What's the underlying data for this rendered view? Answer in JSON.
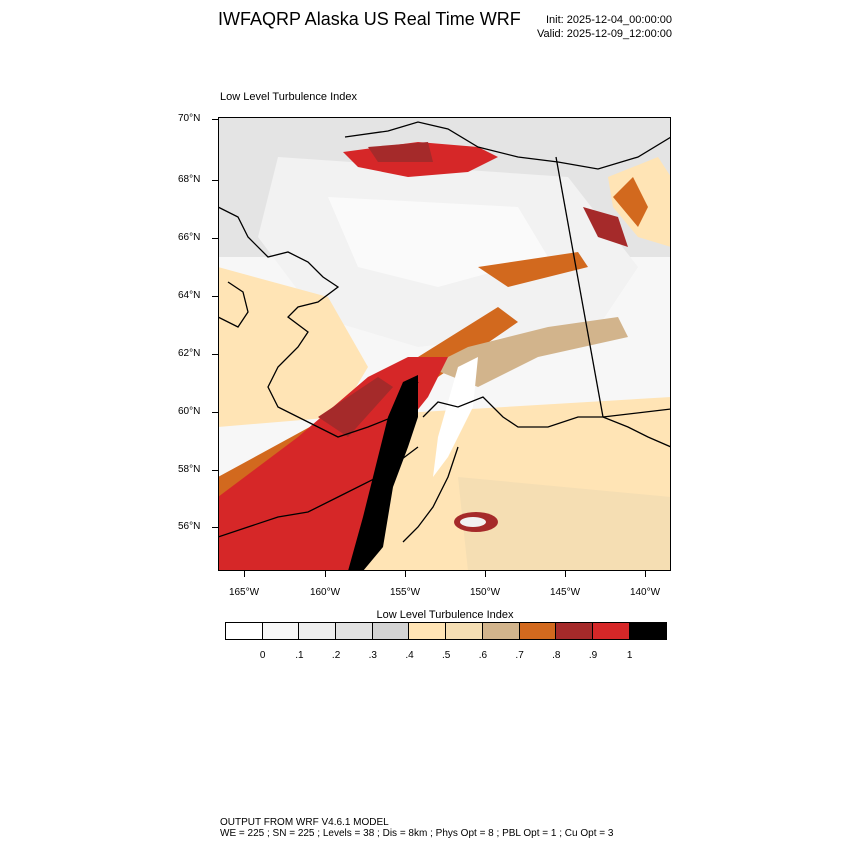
{
  "header": {
    "title": "IWFAQRP Alaska US Real Time WRF",
    "init": "Init: 2025-12-04_00:00:00",
    "valid": "Valid: 2025-12-09_12:00:00"
  },
  "map": {
    "field_title": "Low Level Turbulence Index",
    "region": "Alaska",
    "lat_labels": [
      "70°N",
      "68°N",
      "66°N",
      "64°N",
      "62°N",
      "60°N",
      "58°N",
      "56°N"
    ],
    "lon_labels": [
      "165°W",
      "160°W",
      "155°W",
      "150°W",
      "145°W",
      "140°W"
    ]
  },
  "colorbar": {
    "title": "Low Level Turbulence Index",
    "labels": [
      "0",
      ".1",
      ".2",
      ".3",
      ".4",
      ".5",
      ".6",
      ".7",
      ".8",
      ".9",
      "1"
    ],
    "colors": [
      "#ffffff",
      "#f7f7f7",
      "#eeeeee",
      "#e2e2e2",
      "#d3d3d3",
      "#ffe4b5",
      "#f5deb3",
      "#d2b48c",
      "#d2691e",
      "#a52a2a",
      "#d62728",
      "#000000"
    ]
  },
  "footer": {
    "line1": "OUTPUT FROM WRF V4.6.1 MODEL",
    "line2": "WE = 225 ; SN = 225 ; Levels = 38 ; Dis = 8km ; Phys Opt = 8 ; PBL Opt = 1 ; Cu Opt = 3"
  }
}
